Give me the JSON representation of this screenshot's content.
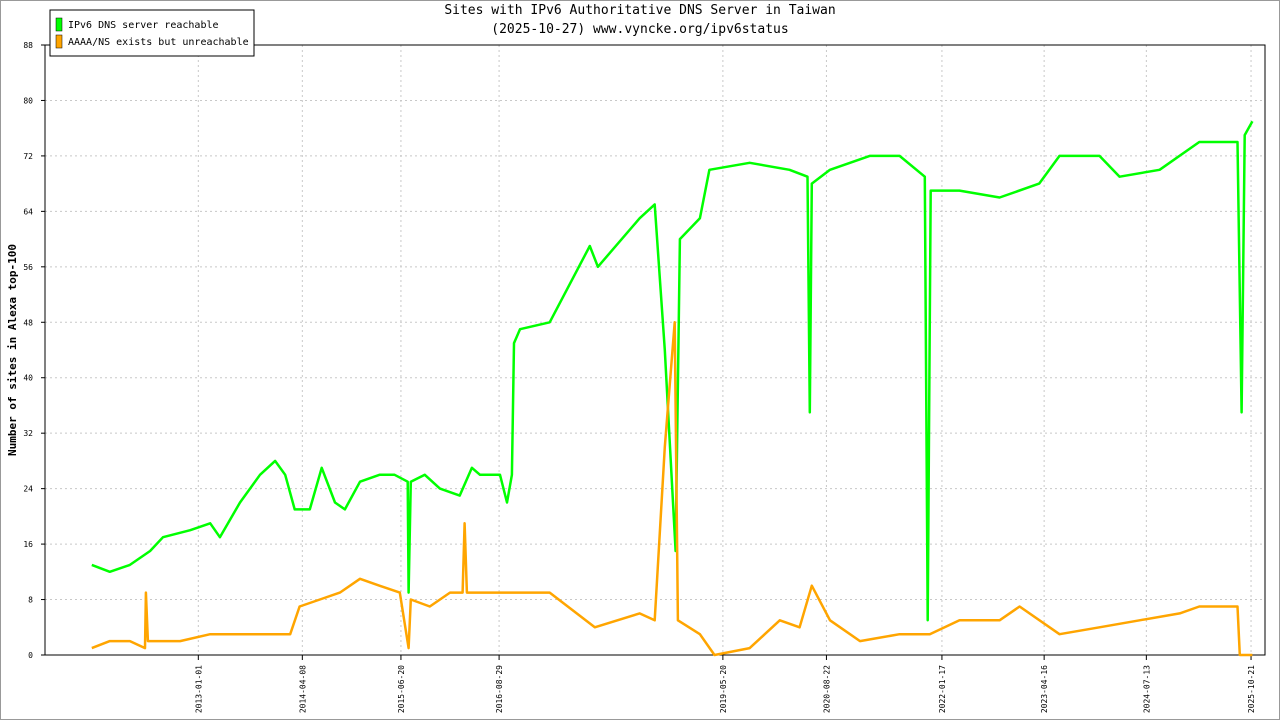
{
  "chart_data": {
    "type": "line",
    "title": "Sites with IPv6 Authoritative DNS Server in Taiwan",
    "subtitle": "(2025-10-27) www.vyncke.org/ipv6status",
    "y_label": "Number of sites in Alexa top-100",
    "xlim": [
      "2011-02-20",
      "2025-12-22"
    ],
    "xticks": [
      "2013-01-01",
      "2014-04-08",
      "2015-06-20",
      "2016-08-29",
      "2019-05-20",
      "2020-08-22",
      "2022-01-17",
      "2023-04-16",
      "2024-07-13",
      "2025-10-21"
    ],
    "ylim": [
      0,
      88
    ],
    "yticks": [
      0,
      8,
      16,
      24,
      32,
      40,
      48,
      56,
      64,
      72,
      80,
      88
    ],
    "grid": true,
    "legend": "top-left",
    "series": [
      {
        "name": "IPv6 DNS server reachable",
        "color": "#00ff00",
        "x": [
          "2011-09-16",
          "2011-12-05",
          "2012-03-03",
          "2012-06-01",
          "2012-07-28",
          "2012-11-26",
          "2013-02-23",
          "2013-04-07",
          "2013-07-05",
          "2013-10-02",
          "2013-12-08",
          "2014-01-22",
          "2014-03-05",
          "2014-05-11",
          "2014-07-03",
          "2014-08-31",
          "2014-10-14",
          "2014-12-20",
          "2015-03-17",
          "2015-05-23",
          "2015-07-20",
          "2015-07-24",
          "2015-08-03",
          "2015-10-04",
          "2015-12-10",
          "2016-03-07",
          "2016-04-30",
          "2016-06-05",
          "2016-09-02",
          "2016-10-03",
          "2016-10-25",
          "2016-11-03",
          "2016-11-30",
          "2017-04-11",
          "2017-10-06",
          "2017-11-11",
          "2018-05-15",
          "2018-07-21",
          "2018-09-04",
          "2018-10-22",
          "2018-11-10",
          "2019-02-07",
          "2019-03-21",
          "2019-09-16",
          "2020-03-11",
          "2020-05-30",
          "2020-06-09",
          "2020-06-18",
          "2020-09-07",
          "2021-03-02",
          "2021-07-13",
          "2021-11-02",
          "2021-11-15",
          "2021-11-28",
          "2022-04-05",
          "2022-09-30",
          "2023-03-25",
          "2023-06-23",
          "2023-12-18",
          "2024-03-16",
          "2024-09-10",
          "2025-03-05",
          "2025-08-22",
          "2025-09-09",
          "2025-09-23",
          "2025-10-27"
        ],
        "values": [
          13,
          12,
          13,
          15,
          17,
          18,
          19,
          17,
          22,
          26,
          28,
          26,
          21,
          21,
          27,
          22,
          21,
          25,
          26,
          26,
          25,
          9,
          25,
          26,
          24,
          23,
          27,
          26,
          26,
          22,
          26,
          45,
          47,
          48,
          59,
          56,
          63,
          65,
          44,
          15,
          60,
          63,
          70,
          71,
          70,
          69,
          35,
          68,
          70,
          72,
          72,
          69,
          5,
          67,
          67,
          66,
          68,
          72,
          72,
          69,
          70,
          74,
          74,
          35,
          75,
          77
        ]
      },
      {
        "name": "AAAA/NS exists but unreachable",
        "color": "#ffa500",
        "x": [
          "2011-09-16",
          "2011-12-05",
          "2012-03-03",
          "2012-05-09",
          "2012-05-13",
          "2012-05-22",
          "2012-10-12",
          "2013-02-23",
          "2013-08-18",
          "2014-02-13",
          "2014-03-27",
          "2014-06-25",
          "2014-09-22",
          "2014-12-20",
          "2015-03-17",
          "2015-06-15",
          "2015-07-24",
          "2015-08-03",
          "2015-10-26",
          "2016-01-24",
          "2016-03-20",
          "2016-03-29",
          "2016-04-08",
          "2016-06-05",
          "2016-10-16",
          "2017-04-11",
          "2017-10-28",
          "2018-05-15",
          "2018-07-21",
          "2018-09-04",
          "2018-10-18",
          "2018-11-01",
          "2019-02-07",
          "2019-04-13",
          "2019-09-16",
          "2020-01-28",
          "2020-04-25",
          "2020-06-18",
          "2020-09-07",
          "2021-01-18",
          "2021-07-13",
          "2021-11-24",
          "2022-04-05",
          "2022-09-30",
          "2022-12-28",
          "2023-06-23",
          "2023-12-18",
          "2024-06-13",
          "2024-12-08",
          "2025-03-05",
          "2025-08-22",
          "2025-09-01",
          "2025-10-27"
        ],
        "values": [
          1,
          2,
          2,
          1,
          9,
          2,
          2,
          3,
          3,
          3,
          7,
          8,
          9,
          11,
          10,
          9,
          1,
          8,
          7,
          9,
          9,
          19,
          9,
          9,
          9,
          9,
          4,
          6,
          5,
          30,
          48,
          5,
          3,
          0,
          1,
          5,
          4,
          10,
          5,
          2,
          3,
          3,
          5,
          5,
          7,
          3,
          4,
          5,
          6,
          7,
          7,
          0,
          0
        ]
      }
    ]
  }
}
